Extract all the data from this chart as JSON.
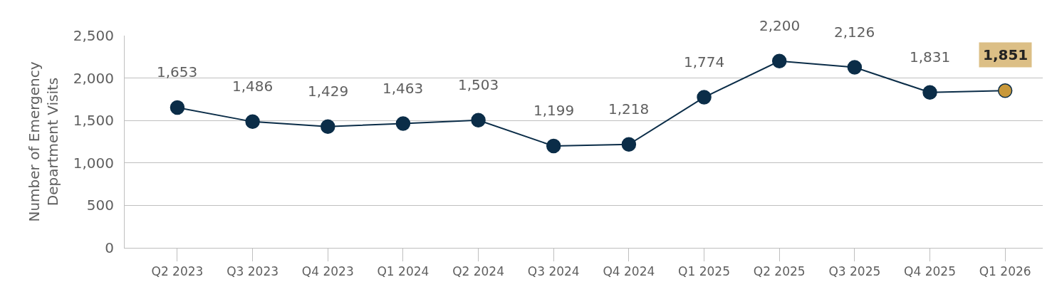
{
  "chart_data": {
    "type": "line",
    "ylabel": "Number of Emergency\nDepartment Visits",
    "categories": [
      "Q2 2023",
      "Q3 2023",
      "Q4 2023",
      "Q1 2024",
      "Q2 2024",
      "Q3 2024",
      "Q4 2024",
      "Q1 2025",
      "Q2 2025",
      "Q3 2025",
      "Q4 2025",
      "Q1 2026"
    ],
    "series": [
      {
        "color": "#0b2d48",
        "colors": [
          "#0b2d48",
          "#0b2d48",
          "#0b2d48",
          "#0b2d48",
          "#0b2d48",
          "#0b2d48",
          "#0b2d48",
          "#0b2d48",
          "#0b2d48",
          "#0b2d48",
          "#0b2d48",
          "#c8983a"
        ],
        "values": [
          1653,
          1486,
          1429,
          1463,
          1503,
          1199,
          1218,
          1774,
          2200,
          2126,
          1831,
          1851
        ],
        "value_labels": [
          "1,653",
          "1,486",
          "1,429",
          "1,463",
          "1,503",
          "1,199",
          "1,218",
          "1,774",
          "2,200",
          "2,126",
          "1,831",
          "1,851"
        ]
      }
    ],
    "ylim": [
      0,
      2500
    ],
    "yticks": [
      {
        "value": 0,
        "label": "0"
      },
      {
        "value": 500,
        "label": "500"
      },
      {
        "value": 1000,
        "label": "1,000"
      },
      {
        "value": 1500,
        "label": "1,500"
      },
      {
        "value": 2000,
        "label": "2,000"
      },
      {
        "value": 2500,
        "label": "2,500"
      }
    ],
    "grid": "y",
    "marker": "circle",
    "line_style": "solid"
  }
}
